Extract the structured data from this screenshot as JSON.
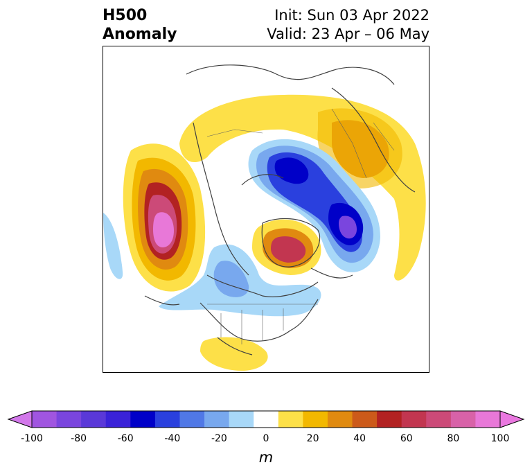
{
  "title": {
    "main": "H500\nAnomaly",
    "main_line1": "H500",
    "main_line2": "Anomaly",
    "init": "Init: Sun 03 Apr 2022",
    "valid": "Valid: 23 Apr – 06 May"
  },
  "colorbar": {
    "unit": "m",
    "ticks": [
      "-100",
      "-80",
      "-60",
      "-40",
      "-20",
      "0",
      "20",
      "40",
      "60",
      "80",
      "100"
    ],
    "levels": [
      -100,
      -90,
      -80,
      -70,
      -60,
      -50,
      -40,
      -30,
      -20,
      -10,
      10,
      20,
      30,
      40,
      50,
      60,
      70,
      80,
      90,
      100
    ],
    "colors": [
      "#a055e0",
      "#7a45de",
      "#5a38d8",
      "#3a22d8",
      "#0000c8",
      "#2a40de",
      "#5078e6",
      "#78a8ee",
      "#a8d8f8",
      "#ffffff",
      "#fde048",
      "#f2b800",
      "#e08a10",
      "#cc5a1a",
      "#b22222",
      "#c23650",
      "#cc4a78",
      "#d862a8",
      "#e878d8"
    ],
    "extend_min_color": "#d278ea",
    "extend_max_color": "#ea78e0"
  },
  "map": {
    "projection": "north-polar-stereographic",
    "field": "500 hPa geopotential height anomaly"
  }
}
